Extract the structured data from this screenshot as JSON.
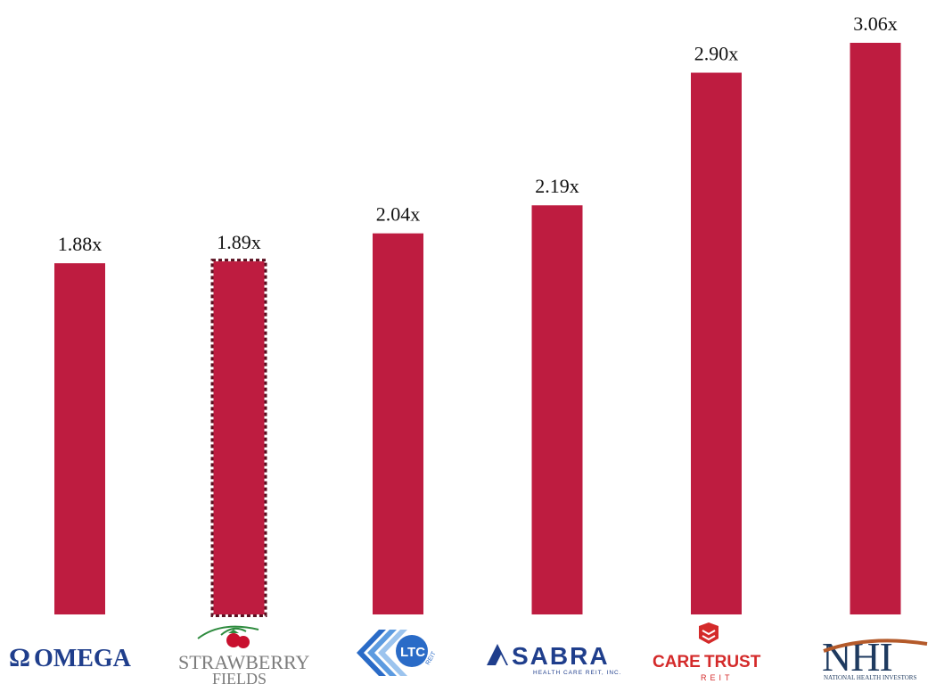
{
  "chart_data": {
    "type": "bar",
    "categories": [
      "OMEGA",
      "STRAWBERRY FIELDS",
      "LTC REIT",
      "SABRA HEALTH CARE REIT, INC.",
      "CARETRUST REIT",
      "NATIONAL HEALTH INVESTORS"
    ],
    "values": [
      1.88,
      1.89,
      2.04,
      2.19,
      2.9,
      3.06
    ],
    "value_labels": [
      "1.88x",
      "1.89x",
      "2.04x",
      "2.19x",
      "2.90x",
      "3.06x"
    ],
    "highlighted_index": 1,
    "ylim": [
      0,
      3.06
    ],
    "grid": false,
    "bar_color": "#BE1C40",
    "highlight_border_color": "#5A1020",
    "title": "",
    "xlabel": "",
    "ylabel": ""
  },
  "logos": {
    "omega": {
      "text": "OMEGA",
      "color": "#1F3E8C"
    },
    "strawberry": {
      "line1": "STRAWBERRY",
      "line2": "FIELDS",
      "color": "#7C7C7C"
    },
    "ltc": {
      "text": "LTC",
      "sub": "REIT",
      "color": "#2A6BC7"
    },
    "sabra": {
      "text": "SABRA",
      "sub": "HEALTH CARE REIT, INC.",
      "color": "#1F3E8C"
    },
    "caretrust": {
      "text_dark": "CARE",
      "text_red": "TRUST",
      "sub": "REIT",
      "color_dark": "#8B1A1A",
      "color_red": "#D42A2A"
    },
    "nhi": {
      "text": "NHI",
      "sub": "NATIONAL HEALTH INVESTORS",
      "color": "#1E3A5F",
      "accent": "#B45A2A"
    }
  }
}
